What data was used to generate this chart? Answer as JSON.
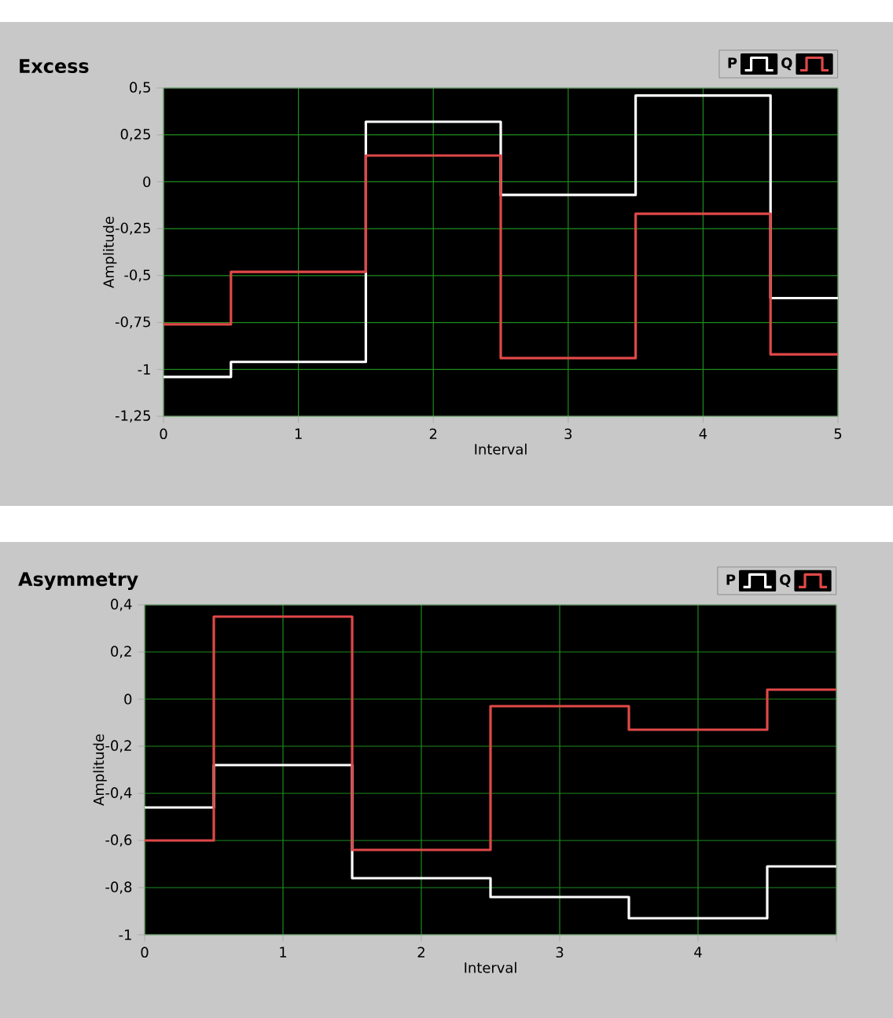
{
  "chart_data": [
    {
      "type": "step",
      "title": "Excess",
      "xlabel": "Interval",
      "ylabel": "Amplitude",
      "x": [
        0,
        0.5,
        1.5,
        2.5,
        3.5,
        4.5,
        5
      ],
      "series": [
        {
          "name": "P",
          "color": "#ffffff",
          "values": [
            -1.04,
            -0.96,
            0.32,
            -0.07,
            0.46,
            -0.62,
            -0.62
          ]
        },
        {
          "name": "Q",
          "color": "#e04848",
          "values": [
            -0.76,
            -0.48,
            0.14,
            -0.94,
            -0.17,
            -0.92,
            -0.92
          ]
        }
      ],
      "xlim": [
        0,
        5
      ],
      "xticks": [
        0,
        1,
        2,
        3,
        4,
        5
      ],
      "ylim": [
        -1.25,
        0.5
      ],
      "yticks": [
        {
          "value": -1.25,
          "label": "-1,25"
        },
        -1,
        {
          "value": -0.75,
          "label": "-0,75"
        },
        {
          "value": -0.5,
          "label": "-0,5"
        },
        {
          "value": -0.25,
          "label": "-0,25"
        },
        0,
        {
          "value": 0.25,
          "label": "0,25"
        },
        {
          "value": 0.5,
          "label": "0,5"
        }
      ],
      "grid": true,
      "legend": "top right"
    },
    {
      "type": "step",
      "title": "Asymmetry",
      "xlabel": "Interval",
      "ylabel": "Amplitude",
      "x": [
        0,
        0.5,
        1.5,
        2.5,
        3.5,
        4.5,
        5
      ],
      "series": [
        {
          "name": "P",
          "color": "#ffffff",
          "values": [
            -0.46,
            -0.28,
            -0.76,
            -0.84,
            -0.93,
            -0.71,
            -0.71
          ]
        },
        {
          "name": "Q",
          "color": "#e04848",
          "values": [
            -0.6,
            0.35,
            -0.64,
            -0.03,
            -0.13,
            0.04,
            0.04
          ]
        }
      ],
      "xlim": [
        0,
        5
      ],
      "xticks": [
        0,
        1,
        2,
        3,
        4,
        {
          "value": 5,
          "label": null
        }
      ],
      "ylim": [
        -1,
        0.4
      ],
      "yticks": [
        -1,
        {
          "value": -0.8,
          "label": "-0,8"
        },
        {
          "value": -0.6,
          "label": "-0,6"
        },
        {
          "value": -0.4,
          "label": "-0,4"
        },
        {
          "value": -0.2,
          "label": "-0,2"
        },
        0,
        {
          "value": 0.2,
          "label": "0,2"
        },
        {
          "value": 0.4,
          "label": "0,4"
        }
      ],
      "grid": true,
      "legend": "top right"
    }
  ]
}
